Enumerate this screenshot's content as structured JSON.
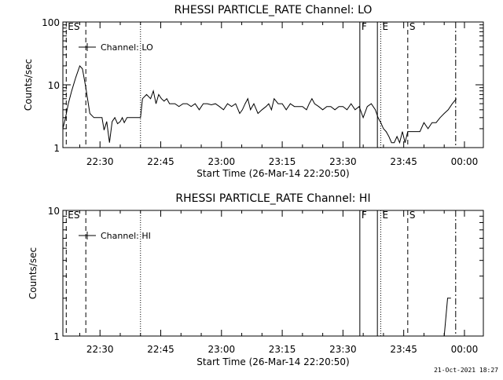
{
  "stamp": "21-Oct-2021 18:27",
  "chart_data": [
    {
      "type": "line",
      "title": "RHESSI PARTICLE_RATE Channel: LO",
      "xlabel": "Start Time (26-Mar-14 22:20:50)",
      "ylabel": "Counts/sec",
      "yscale": "log",
      "ylim": [
        1,
        100
      ],
      "xlim": [
        "22:20:50",
        "00:04:40"
      ],
      "xticks": [
        "22:30",
        "22:45",
        "23:00",
        "23:15",
        "23:30",
        "23:45",
        "00:00"
      ],
      "yticks": [
        "1",
        "10",
        "100"
      ],
      "legend": "top-left",
      "markers": [
        {
          "time": "22:21:40",
          "style": "dashed",
          "label": "ES"
        },
        {
          "time": "22:26:30",
          "style": "dashed",
          "label": ""
        },
        {
          "time": "22:40:00",
          "style": "dotted",
          "label": ""
        },
        {
          "time": "23:34:10",
          "style": "solid",
          "label": "F"
        },
        {
          "time": "23:38:30",
          "style": "solid",
          "label": ""
        },
        {
          "time": "23:39:20",
          "style": "dotted",
          "label": "E"
        },
        {
          "time": "23:46:00",
          "style": "dashed",
          "label": "S"
        },
        {
          "time": "23:57:50",
          "style": "dashdot",
          "label": ""
        }
      ],
      "series": [
        {
          "name": "Channel: LO",
          "x": [
            "22:20:50",
            "22:21:30",
            "22:22:10",
            "22:23:00",
            "22:24:00",
            "22:25:00",
            "22:25:40",
            "22:26:30",
            "22:27:30",
            "22:28:30",
            "22:29:30",
            "22:30:30",
            "22:31:00",
            "22:31:40",
            "22:32:20",
            "22:33:00",
            "22:33:40",
            "22:34:20",
            "22:35:00",
            "22:35:30",
            "22:36:00",
            "22:36:40",
            "22:37:30",
            "22:38:30",
            "22:40:00",
            "22:40:30",
            "22:41:30",
            "22:42:30",
            "22:43:10",
            "22:43:50",
            "22:44:30",
            "22:45:10",
            "22:45:50",
            "22:46:30",
            "22:47:10",
            "22:47:50",
            "22:48:30",
            "22:49:30",
            "22:50:30",
            "22:51:30",
            "22:52:30",
            "22:53:30",
            "22:54:30",
            "22:55:30",
            "22:56:30",
            "22:57:30",
            "22:58:30",
            "22:59:30",
            "23:00:30",
            "23:01:30",
            "23:02:30",
            "23:03:30",
            "23:04:30",
            "23:05:10",
            "23:05:50",
            "23:06:30",
            "23:07:10",
            "23:08:00",
            "23:09:00",
            "23:10:00",
            "23:11:00",
            "23:11:40",
            "23:12:20",
            "23:13:00",
            "23:14:00",
            "23:15:00",
            "23:16:00",
            "23:17:00",
            "23:18:00",
            "23:19:00",
            "23:20:00",
            "23:21:00",
            "23:21:40",
            "23:22:20",
            "23:23:00",
            "23:24:00",
            "23:25:00",
            "23:26:00",
            "23:27:00",
            "23:28:00",
            "23:29:00",
            "23:30:00",
            "23:31:00",
            "23:32:00",
            "23:33:00",
            "23:34:00",
            "23:35:00",
            "23:36:00",
            "23:37:00",
            "23:38:00",
            "23:38:40",
            "23:39:20",
            "23:40:00",
            "23:40:40",
            "23:41:20",
            "23:42:00",
            "23:42:40",
            "23:43:20",
            "23:44:00",
            "23:44:40",
            "23:45:20",
            "23:46:00",
            "23:47:00",
            "23:48:00",
            "23:49:00",
            "23:50:00",
            "23:51:00",
            "23:52:00",
            "23:53:00",
            "23:54:00",
            "23:55:00",
            "23:56:00",
            "23:57:00",
            "23:58:00"
          ],
          "y": [
            2,
            3,
            5,
            8,
            13,
            20,
            18,
            9,
            3.5,
            3,
            3,
            3,
            1.9,
            2.6,
            1.2,
            2.6,
            3,
            2.4,
            2.6,
            3,
            2.5,
            3,
            3,
            3,
            3,
            6,
            7,
            6,
            8,
            5,
            7,
            6,
            5.5,
            6,
            5,
            5,
            5,
            4.5,
            5,
            5,
            4.5,
            5,
            4,
            5,
            5,
            4.8,
            5,
            4.5,
            4,
            5,
            4.5,
            5,
            3.5,
            4,
            5,
            6,
            4,
            5,
            3.5,
            4,
            4.5,
            5,
            4,
            6,
            5,
            5,
            4,
            5,
            4.5,
            4.5,
            4.5,
            4,
            5,
            6,
            5,
            4.5,
            4,
            4.5,
            4.5,
            4,
            4.5,
            4.5,
            4,
            5,
            4,
            4.5,
            3,
            4.5,
            5,
            4,
            3,
            2.5,
            2,
            1.8,
            1.5,
            1.2,
            1.2,
            1.5,
            1.2,
            1.8,
            1.2,
            1.8,
            1.8,
            1.8,
            1.8,
            2.5,
            2,
            2.5,
            2.5,
            3,
            3.5,
            4,
            5,
            6
          ]
        }
      ]
    },
    {
      "type": "line",
      "title": "RHESSI PARTICLE_RATE Channel: HI",
      "xlabel": "Start Time (26-Mar-14 22:20:50)",
      "ylabel": "Counts/sec",
      "yscale": "log",
      "ylim": [
        1,
        10
      ],
      "xlim": [
        "22:20:50",
        "00:04:40"
      ],
      "xticks": [
        "22:30",
        "22:45",
        "23:00",
        "23:15",
        "23:30",
        "23:45",
        "00:00"
      ],
      "yticks": [
        "1",
        "10"
      ],
      "legend": "top-left",
      "markers": [
        {
          "time": "22:21:40",
          "style": "dashed",
          "label": "ES"
        },
        {
          "time": "22:26:30",
          "style": "dashed",
          "label": ""
        },
        {
          "time": "22:40:00",
          "style": "dotted",
          "label": ""
        },
        {
          "time": "23:34:10",
          "style": "solid",
          "label": "F"
        },
        {
          "time": "23:38:30",
          "style": "solid",
          "label": ""
        },
        {
          "time": "23:39:20",
          "style": "dotted",
          "label": "E"
        },
        {
          "time": "23:46:00",
          "style": "dashed",
          "label": "S"
        },
        {
          "time": "23:57:50",
          "style": "dashdot",
          "label": ""
        }
      ],
      "series": [
        {
          "name": "Channel: HI",
          "x": [
            "23:54:10",
            "23:55:00",
            "23:55:50",
            "23:56:40"
          ],
          "y": [
            1,
            1,
            2,
            2
          ]
        }
      ]
    }
  ]
}
